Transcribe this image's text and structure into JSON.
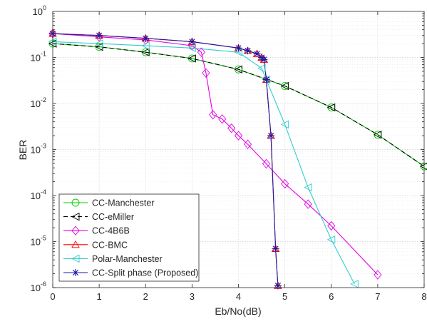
{
  "chart_data": {
    "type": "line",
    "title": "",
    "xlabel": "Eb/No(dB)",
    "ylabel": "BER",
    "xlim": [
      0,
      8
    ],
    "ylim": [
      1e-06,
      1
    ],
    "yscale": "log",
    "grid": true,
    "minor_grid": true,
    "legend_position": "bottom-left",
    "x_ticks": [
      "0",
      "1",
      "2",
      "3",
      "4",
      "5",
      "6",
      "7",
      "8"
    ],
    "y_ticks": [
      {
        "base": "10",
        "exp": "0"
      },
      {
        "base": "10",
        "exp": "-1"
      },
      {
        "base": "10",
        "exp": "-2"
      },
      {
        "base": "10",
        "exp": "-3"
      },
      {
        "base": "10",
        "exp": "-4"
      },
      {
        "base": "10",
        "exp": "-5"
      },
      {
        "base": "10",
        "exp": "-6"
      }
    ],
    "series": [
      {
        "name": "CC-Manchester",
        "color": "#00cc00",
        "marker": "circle",
        "x": [
          0,
          1,
          2,
          3,
          4,
          5,
          6,
          7,
          8
        ],
        "y": [
          0.2,
          0.17,
          0.13,
          0.095,
          0.055,
          0.024,
          0.0082,
          0.0021,
          0.00043
        ]
      },
      {
        "name": "CC-eMiller",
        "color": "#000000",
        "marker": "triangle-left",
        "dashed": true,
        "x": [
          0,
          1,
          2,
          3,
          4,
          5,
          6,
          7,
          8
        ],
        "y": [
          0.2,
          0.17,
          0.13,
          0.095,
          0.055,
          0.024,
          0.0082,
          0.0021,
          0.00043
        ]
      },
      {
        "name": "CC-4B6B",
        "color": "#e600e6",
        "marker": "diamond",
        "x": [
          0,
          1,
          2,
          3,
          3.2,
          3.3,
          3.45,
          3.65,
          3.85,
          4.0,
          4.2,
          4.6,
          5.0,
          5.5,
          6.0,
          7.0
        ],
        "y": [
          0.33,
          0.28,
          0.24,
          0.18,
          0.13,
          0.046,
          0.0057,
          0.0046,
          0.0029,
          0.002,
          0.0013,
          0.00049,
          0.00018,
          6.5e-05,
          2.2e-05,
          1.9e-06
        ]
      },
      {
        "name": "CC-BMC",
        "color": "#ff0000",
        "marker": "triangle-up",
        "x": [
          0,
          1,
          2,
          3,
          4,
          4.2,
          4.4,
          4.5,
          4.55,
          4.6,
          4.7,
          4.8,
          4.85
        ],
        "y": [
          0.33,
          0.3,
          0.26,
          0.22,
          0.16,
          0.14,
          0.12,
          0.1,
          0.09,
          0.033,
          0.002,
          7e-06,
          1.1e-06
        ]
      },
      {
        "name": "Polar-Manchester",
        "color": "#33cccc",
        "marker": "triangle-left",
        "x": [
          0,
          1,
          2,
          3,
          4,
          4.5,
          4.6,
          5.0,
          5.5,
          6.0,
          6.5
        ],
        "y": [
          0.22,
          0.2,
          0.18,
          0.16,
          0.13,
          0.058,
          0.033,
          0.0035,
          0.00015,
          1.1e-05,
          1.2e-06
        ]
      },
      {
        "name": "CC-Split phase (Proposed)",
        "color": "#1a1aa6",
        "marker": "star",
        "x": [
          0,
          1,
          2,
          3,
          4,
          4.2,
          4.4,
          4.5,
          4.55,
          4.6,
          4.7,
          4.8,
          4.85
        ],
        "y": [
          0.33,
          0.3,
          0.26,
          0.22,
          0.16,
          0.14,
          0.12,
          0.1,
          0.09,
          0.033,
          0.002,
          7e-06,
          1.1e-06
        ]
      }
    ]
  }
}
